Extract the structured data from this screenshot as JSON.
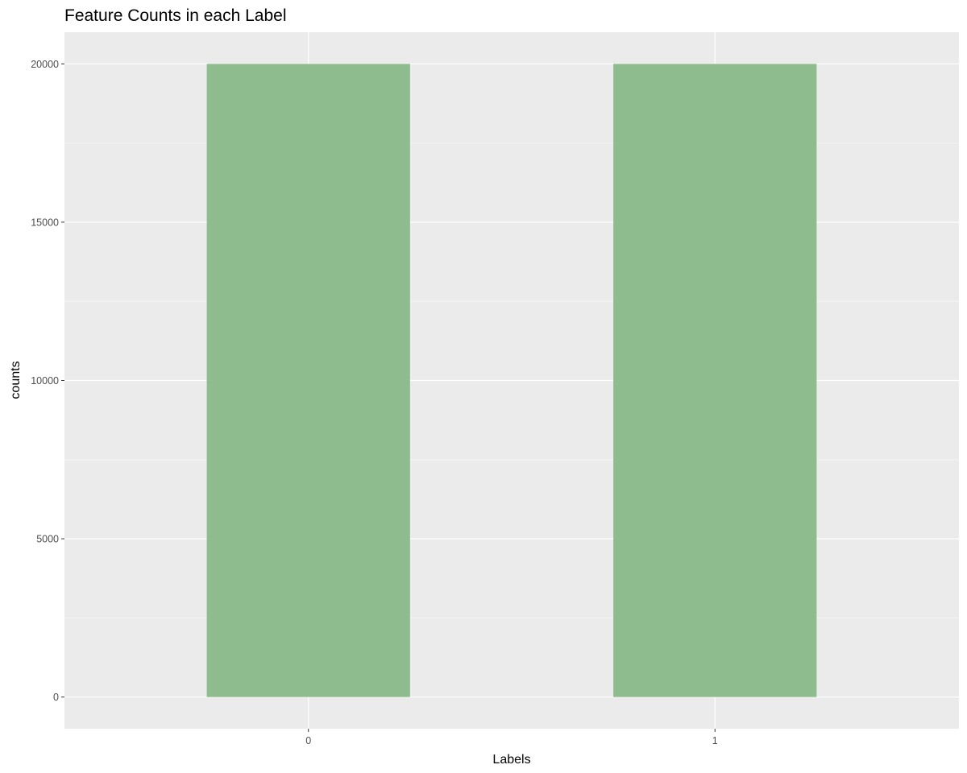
{
  "colors": {
    "panel_background": "#ebebeb",
    "grid_major": "#ffffff",
    "grid_minor": "#f5f5f5",
    "bar_fill": "#8fbc8f",
    "tick_color": "#333333"
  },
  "chart_data": {
    "type": "bar",
    "title": "Feature Counts in each Label",
    "xlabel": "Labels",
    "ylabel": "counts",
    "categories": [
      "0",
      "1"
    ],
    "values": [
      20000,
      20000
    ],
    "ylim": [
      -1000,
      21000
    ],
    "y_ticks": [
      0,
      5000,
      10000,
      15000,
      20000
    ],
    "y_tick_labels": [
      "0",
      "5000",
      "10000",
      "15000",
      "20000"
    ],
    "grid": true,
    "legend": "none"
  }
}
